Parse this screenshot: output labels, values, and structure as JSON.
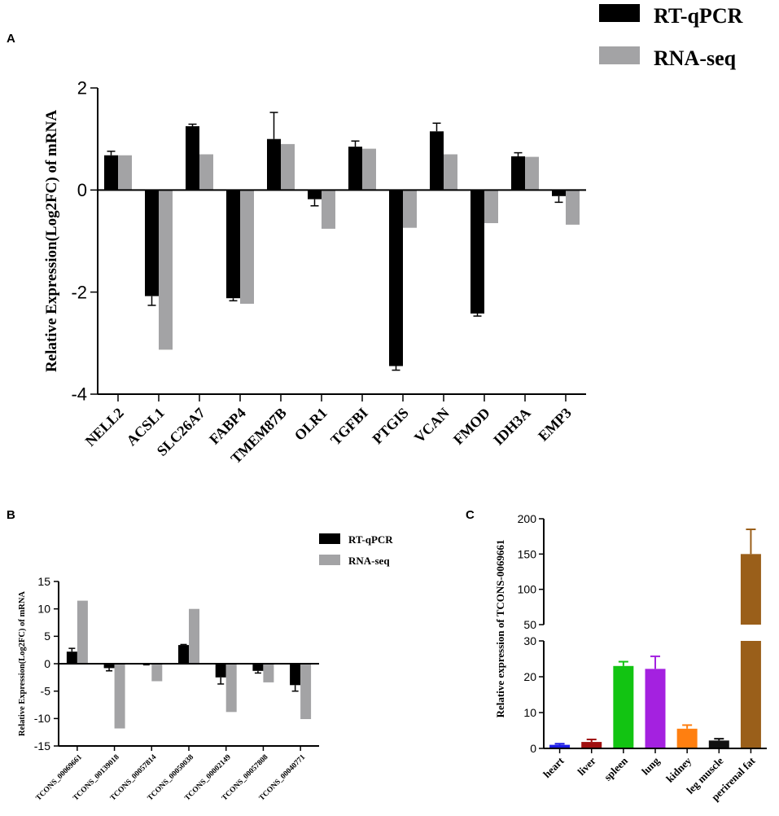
{
  "panel_labels": {
    "a": "A",
    "b": "B",
    "c": "C"
  },
  "colors": {
    "rtqpcr": "#000000",
    "rnaseq": "#a3a3a5",
    "c_bars": [
      "#1c1ce6",
      "#a01010",
      "#12c412",
      "#a421e0",
      "#ff7f10",
      "#111111",
      "#9a5f1a"
    ]
  },
  "chart_data": [
    {
      "id": "A",
      "type": "bar",
      "ylabel": "Relative Expression(Log2FC) of mRNA",
      "ylim": [
        -4,
        2
      ],
      "yticks": [
        -4,
        -2,
        0,
        2
      ],
      "ytick_labels": [
        "-4",
        "-2",
        "0",
        "2"
      ],
      "categories": [
        "NELL2",
        "ACSL1",
        "SLC26A7",
        "FABP4",
        "TMEM87B",
        "OLR1",
        "TGFBI",
        "PTGIS",
        "VCAN",
        "FMOD",
        "IDH3A",
        "EMP3"
      ],
      "legend": [
        "RT-qPCR",
        "RNA-seq"
      ],
      "series": [
        {
          "name": "RT-qPCR",
          "values": [
            0.68,
            -2.08,
            1.25,
            -2.12,
            1.0,
            -0.18,
            0.85,
            -3.45,
            1.15,
            -2.42,
            0.66,
            -0.12
          ],
          "errors": [
            0.08,
            0.18,
            0.04,
            0.05,
            0.52,
            0.13,
            0.11,
            0.08,
            0.16,
            0.05,
            0.07,
            0.12
          ]
        },
        {
          "name": "RNA-seq",
          "values": [
            0.68,
            -3.13,
            0.7,
            -2.23,
            0.9,
            -0.76,
            0.81,
            -0.74,
            0.7,
            -0.65,
            0.65,
            -0.68
          ]
        }
      ]
    },
    {
      "id": "B",
      "type": "bar",
      "ylabel": "Relative Expression(Log2FC) of mRNA",
      "ylim": [
        -15,
        15
      ],
      "yticks": [
        -15,
        -10,
        -5,
        0,
        5,
        10,
        15
      ],
      "ytick_labels": [
        "-15",
        "-10",
        "-5",
        "0",
        "5",
        "10",
        "15"
      ],
      "categories": [
        "TCONS_00069661",
        "TCONS_00139018",
        "TCONS_00057814",
        "TCONS_00050038",
        "TCONS_00002149",
        "TCONS_00057808",
        "TCONS_00040771"
      ],
      "legend": [
        "RT-qPCR",
        "RNA-seq"
      ],
      "series": [
        {
          "name": "RT-qPCR",
          "values": [
            2.2,
            -0.8,
            -0.1,
            3.4,
            -2.5,
            -1.3,
            -3.9
          ],
          "errors": [
            0.6,
            0.5,
            0.1,
            0.1,
            1.2,
            0.4,
            1.1
          ]
        },
        {
          "name": "RNA-seq",
          "values": [
            11.5,
            -11.8,
            -3.2,
            10.0,
            -8.8,
            -3.4,
            -10.1
          ]
        }
      ]
    },
    {
      "id": "C",
      "type": "bar",
      "ylabel": "Relative expression of TCONS-0069661",
      "axis_break": {
        "lower": [
          0,
          30
        ],
        "upper": [
          50,
          200
        ]
      },
      "lower_ticks": [
        0,
        10,
        20,
        30
      ],
      "lower_tick_labels": [
        "0",
        "10",
        "20",
        "30"
      ],
      "upper_ticks": [
        50,
        100,
        150,
        200
      ],
      "upper_tick_labels": [
        "50",
        "100",
        "150",
        "200"
      ],
      "categories": [
        "heart",
        "liver",
        "spleen",
        "lung",
        "kidney",
        "leg muscle",
        "perirenal fat"
      ],
      "values": [
        1.0,
        1.8,
        23.0,
        22.2,
        5.5,
        2.2,
        150
      ],
      "errors": [
        0.3,
        0.7,
        1.2,
        3.5,
        1.0,
        0.5,
        35
      ]
    }
  ]
}
